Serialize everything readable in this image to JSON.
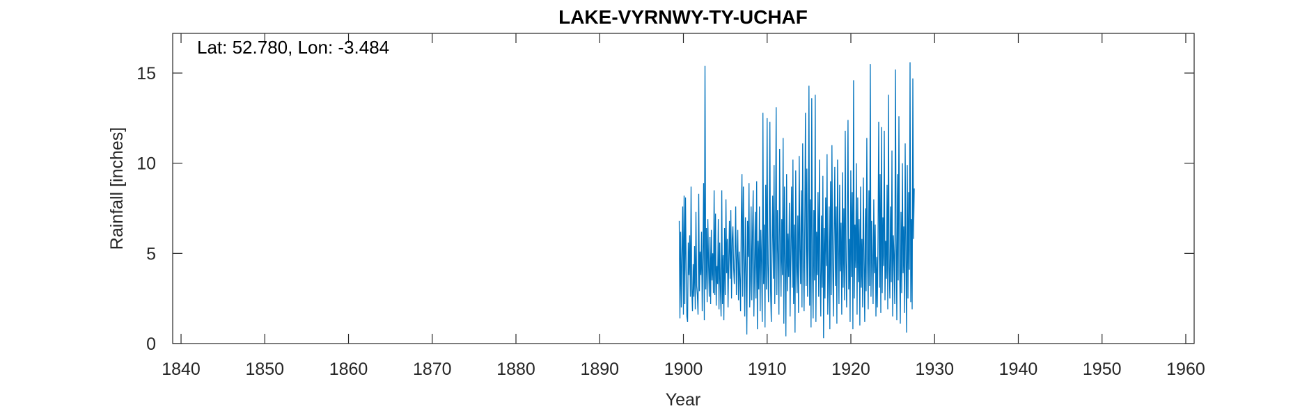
{
  "chart_data": {
    "type": "line",
    "title": "LAKE-VYRNWY-TY-UCHAF",
    "annotation": "Lat: 52.780, Lon: -3.484",
    "xlabel": "Year",
    "ylabel": "Rainfall [inches]",
    "xlim": [
      1839,
      1961
    ],
    "ylim": [
      0,
      17.2
    ],
    "xticks": [
      1840,
      1850,
      1860,
      1870,
      1880,
      1890,
      1900,
      1910,
      1920,
      1930,
      1940,
      1950,
      1960
    ],
    "yticks": [
      0,
      5,
      10,
      15
    ],
    "grid": false,
    "series_color": "#0072BD",
    "series": [
      {
        "start_year": 1899.5,
        "step_years": 0.0833,
        "values": [
          6.8,
          1.4,
          6.2,
          2.0,
          5.0,
          7.6,
          1.6,
          8.2,
          2.2,
          8.1,
          4.1,
          1.5,
          1.2,
          5.6,
          3.8,
          6.0,
          2.6,
          8.7,
          3.0,
          1.8,
          4.4,
          2.6,
          5.4,
          1.9,
          7.3,
          3.2,
          2.7,
          1.6,
          8.3,
          2.9,
          5.1,
          3.8,
          6.2,
          1.8,
          4.7,
          8.9,
          1.3,
          15.4,
          3.0,
          6.4,
          2.3,
          6.9,
          4.4,
          2.6,
          5.9,
          2.2,
          6.3,
          3.5,
          5.0,
          2.8,
          8.5,
          2.7,
          7.2,
          2.1,
          4.3,
          3.3,
          6.9,
          1.9,
          5.6,
          3.0,
          1.5,
          8.5,
          2.2,
          4.9,
          1.3,
          6.4,
          2.7,
          8.0,
          3.9,
          5.8,
          2.0,
          4.6,
          6.8,
          3.6,
          7.4,
          2.5,
          5.8,
          6.5,
          4.2,
          3.3,
          5.0,
          7.6,
          2.7,
          4.8,
          6.3,
          2.4,
          5.1,
          3.6,
          1.8,
          6.9,
          9.4,
          2.6,
          8.7,
          4.5,
          1.5,
          7.0,
          3.9,
          0.5,
          6.8,
          4.8,
          8.9,
          2.0,
          3.5,
          7.6,
          2.4,
          6.1,
          8.5,
          1.5,
          4.4,
          7.3,
          2.5,
          9.0,
          0.8,
          5.7,
          3.0,
          7.6,
          1.8,
          6.3,
          4.5,
          1.2,
          12.8,
          3.3,
          6.6,
          0.9,
          8.8,
          3.0,
          12.5,
          4.4,
          2.3,
          6.7,
          12.3,
          2.9,
          1.2,
          5.5,
          8.2,
          3.6,
          9.9,
          2.2,
          6.0,
          13.1,
          2.7,
          7.4,
          4.8,
          1.6,
          10.8,
          5.3,
          2.6,
          6.9,
          3.8,
          11.4,
          1.1,
          8.7,
          4.2,
          0.4,
          9.4,
          2.9,
          6.1,
          3.7,
          7.8,
          1.5,
          5.3,
          8.7,
          3.1,
          10.2,
          2.2,
          6.6,
          0.6,
          9.6,
          4.4,
          2.8,
          7.1,
          1.7,
          10.4,
          5.2,
          3.3,
          8.5,
          2.0,
          11.1,
          4.9,
          1.8,
          6.8,
          12.8,
          3.2,
          9.7,
          2.6,
          5.4,
          14.3,
          2.1,
          8.0,
          0.9,
          13.6,
          4.1,
          1.4,
          7.4,
          3.5,
          13.8,
          1.2,
          6.2,
          3.8,
          8.4,
          2.6,
          10.2,
          4.0,
          1.5,
          7.1,
          3.1,
          9.3,
          0.3,
          6.4,
          2.5,
          8.1,
          4.3,
          10.5,
          1.6,
          3.5,
          7.6,
          0.8,
          9.0,
          2.7,
          11.0,
          4.4,
          1.5,
          6.0,
          9.8,
          3.2,
          7.6,
          1.1,
          10.2,
          5.4,
          2.2,
          8.8,
          4.0,
          6.7,
          1.6,
          9.5,
          3.1,
          7.5,
          2.4,
          11.8,
          4.6,
          2.0,
          7.3,
          12.4,
          3.0,
          5.8,
          1.2,
          9.6,
          3.7,
          8.4,
          0.8,
          14.6,
          2.5,
          6.6,
          4.2,
          10.0,
          1.6,
          8.1,
          3.4,
          6.9,
          1.0,
          8.7,
          3.1,
          5.8,
          2.0,
          9.2,
          4.6,
          1.2,
          7.5,
          2.9,
          11.4,
          4.7,
          1.9,
          8.5,
          3.2,
          15.5,
          2.6,
          6.8,
          4.5,
          2.2,
          8.0,
          3.9,
          6.6,
          1.5,
          4.8,
          2.0,
          5.9,
          12.3,
          3.1,
          9.4,
          1.7,
          12.0,
          2.8,
          7.0,
          4.3,
          11.8,
          2.4,
          5.7,
          3.6,
          8.8,
          1.9,
          13.8,
          4.2,
          2.5,
          7.6,
          3.4,
          10.7,
          1.5,
          6.0,
          4.8,
          2.2,
          15.2,
          5.9,
          1.3,
          9.4,
          3.5,
          12.6,
          4.4,
          1.1,
          7.3,
          2.8,
          10.0,
          3.9,
          6.5,
          1.7,
          11.1,
          4.7,
          0.6,
          9.9,
          2.5,
          8.4,
          4.1,
          15.6,
          2.3,
          6.9,
          1.9,
          14.7,
          5.8,
          8.6
        ]
      }
    ]
  }
}
